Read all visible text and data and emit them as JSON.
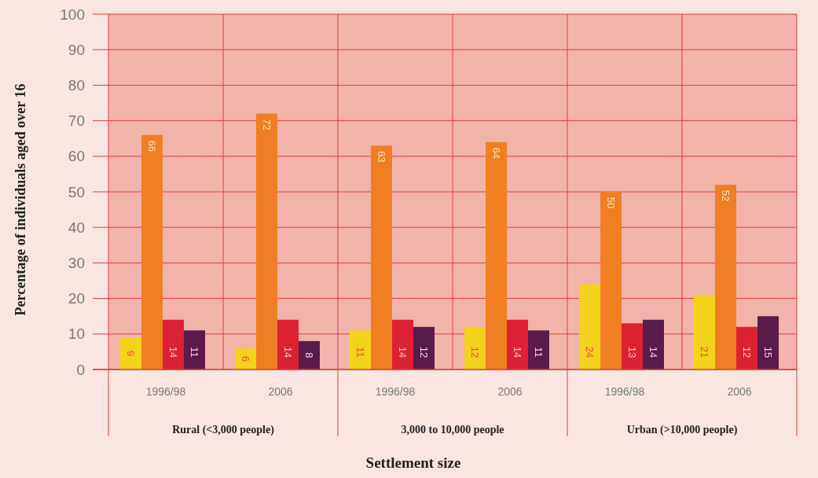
{
  "chart_data": {
    "type": "bar",
    "xlabel": "Settlement size",
    "ylabel": "Percentage of individuals aged over 16",
    "categories": [
      "1996/98",
      "2006",
      "1996/98",
      "2006",
      "1996/98",
      "2006"
    ],
    "series": [
      {
        "color": "#f5d21c",
        "values": [
          9,
          6,
          11,
          12,
          24,
          21
        ]
      },
      {
        "color": "#ef7f22",
        "values": [
          66,
          72,
          63,
          64,
          50,
          52
        ]
      },
      {
        "color": "#dc2133",
        "values": [
          14,
          14,
          14,
          14,
          13,
          12
        ]
      },
      {
        "color": "#5a1a4a",
        "values": [
          11,
          8,
          12,
          11,
          14,
          15
        ]
      }
    ],
    "annotations": [
      "Rural (<3,000 people)",
      "3,000 to 10,000 people",
      "Urban (>10,000 people)"
    ],
    "ylim": [
      0,
      100
    ],
    "yticks": [
      0,
      10,
      20,
      30,
      40,
      50,
      60,
      70,
      80,
      90,
      100
    ],
    "grid": true,
    "data_labels": true
  }
}
